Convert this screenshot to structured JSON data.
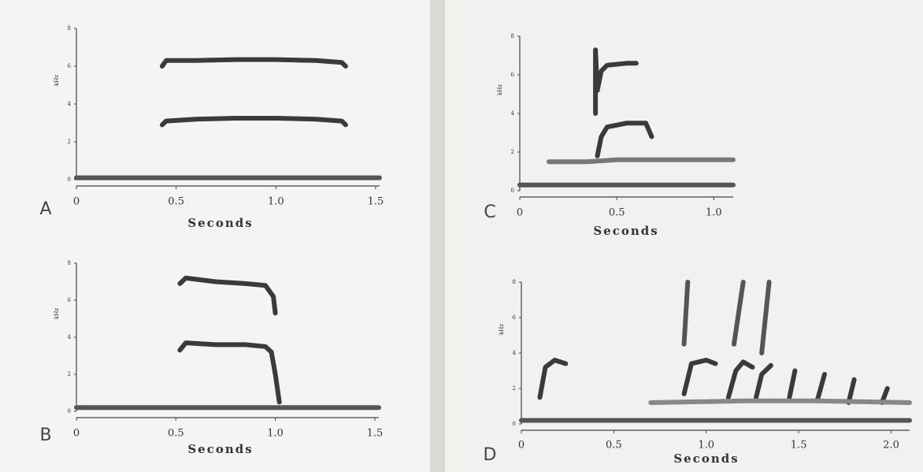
{
  "chart_data": [
    {
      "type": "line",
      "panel": "A",
      "xlabel": "Seconds",
      "ylabel": "kHz",
      "xlim": [
        0,
        1.52
      ],
      "ylim": [
        0,
        8
      ],
      "xticks": [
        0,
        0.5,
        {
          "value": 1,
          "label": "1.0"
        },
        1.5
      ],
      "yticks": [
        0,
        2,
        4,
        6,
        8
      ],
      "series": [
        {
          "color": "#3a3a3a",
          "x": [
            0.43,
            0.45,
            0.6,
            0.8,
            1.0,
            1.2,
            1.33,
            1.35
          ],
          "values": [
            6.0,
            6.3,
            6.3,
            6.35,
            6.35,
            6.3,
            6.2,
            6.0
          ]
        },
        {
          "color": "#3a3a3a",
          "x": [
            0.43,
            0.45,
            0.6,
            0.8,
            1.0,
            1.2,
            1.33,
            1.35
          ],
          "values": [
            2.9,
            3.1,
            3.2,
            3.25,
            3.25,
            3.2,
            3.1,
            2.9
          ]
        },
        {
          "color": "#555555",
          "x": [
            0,
            0.5,
            1.0,
            1.52
          ],
          "values": [
            0.1,
            0.1,
            0.1,
            0.1
          ]
        }
      ]
    },
    {
      "type": "line",
      "panel": "B",
      "xlabel": "Seconds",
      "ylabel": "kHz",
      "xlim": [
        0,
        1.52
      ],
      "ylim": [
        0,
        8
      ],
      "xticks": [
        0,
        0.5,
        {
          "value": 1,
          "label": "1.0"
        },
        1.5
      ],
      "yticks": [
        0,
        2,
        4,
        6,
        8
      ],
      "series": [
        {
          "color": "#3a3a3a",
          "x": [
            0.52,
            0.55,
            0.7,
            0.85,
            0.95,
            0.99,
            1.0
          ],
          "values": [
            6.9,
            7.2,
            7.0,
            6.9,
            6.8,
            6.2,
            5.3
          ]
        },
        {
          "color": "#3a3a3a",
          "x": [
            0.52,
            0.55,
            0.7,
            0.85,
            0.95,
            0.98,
            1.0,
            1.02
          ],
          "values": [
            3.3,
            3.7,
            3.6,
            3.6,
            3.5,
            3.2,
            2.0,
            0.5
          ]
        },
        {
          "color": "#555555",
          "x": [
            0,
            0.5,
            1.0,
            1.52
          ],
          "values": [
            0.2,
            0.2,
            0.2,
            0.2
          ]
        }
      ]
    },
    {
      "type": "line",
      "panel": "C",
      "xlabel": "Seconds",
      "ylabel": "kHz",
      "xlim": [
        0,
        1.1
      ],
      "ylim": [
        0,
        8
      ],
      "xticks": [
        0,
        0.5,
        {
          "value": 1,
          "label": "1.0"
        }
      ],
      "yticks": [
        0,
        2,
        4,
        6,
        8
      ],
      "series": [
        {
          "color": "#3a3a3a",
          "x": [
            0.39,
            0.39,
            0.4,
            0.42,
            0.45,
            0.55,
            0.6
          ],
          "values": [
            4.0,
            7.3,
            5.2,
            6.2,
            6.5,
            6.6,
            6.6
          ]
        },
        {
          "color": "#3a3a3a",
          "x": [
            0.4,
            0.42,
            0.45,
            0.55,
            0.65,
            0.68
          ],
          "values": [
            1.8,
            2.8,
            3.3,
            3.5,
            3.5,
            2.8
          ]
        },
        {
          "color": "#777777",
          "x": [
            0.15,
            0.35,
            0.5,
            0.8,
            1.1
          ],
          "values": [
            1.5,
            1.5,
            1.6,
            1.6,
            1.6
          ]
        },
        {
          "color": "#555555",
          "x": [
            0,
            0.5,
            1.0,
            1.1
          ],
          "values": [
            0.3,
            0.3,
            0.3,
            0.3
          ]
        }
      ]
    },
    {
      "type": "line",
      "panel": "D",
      "xlabel": "Seconds",
      "ylabel": "kHz",
      "xlim": [
        0,
        2.1
      ],
      "ylim": [
        0,
        8
      ],
      "xticks": [
        0,
        0.5,
        {
          "value": 1,
          "label": "1.0"
        },
        1.5,
        {
          "value": 2,
          "label": "2.0"
        }
      ],
      "yticks": [
        0,
        2,
        4,
        6,
        8
      ],
      "series": [
        {
          "color": "#3a3a3a",
          "x": [
            0.1,
            0.13,
            0.18,
            0.24
          ],
          "values": [
            1.5,
            3.2,
            3.6,
            3.4
          ]
        },
        {
          "color": "#3a3a3a",
          "x": [
            0.88,
            0.92,
            1.0,
            1.05
          ],
          "values": [
            1.7,
            3.4,
            3.6,
            3.4
          ]
        },
        {
          "color": "#3a3a3a",
          "x": [
            1.12,
            1.16,
            1.2,
            1.25
          ],
          "values": [
            1.5,
            3.0,
            3.5,
            3.2
          ]
        },
        {
          "color": "#3a3a3a",
          "x": [
            1.27,
            1.3,
            1.35
          ],
          "values": [
            1.5,
            2.8,
            3.3
          ]
        },
        {
          "color": "#3a3a3a",
          "x": [
            1.45,
            1.48
          ],
          "values": [
            1.5,
            3.0
          ]
        },
        {
          "color": "#3a3a3a",
          "x": [
            1.6,
            1.64
          ],
          "values": [
            1.3,
            2.8
          ]
        },
        {
          "color": "#3a3a3a",
          "x": [
            1.77,
            1.8
          ],
          "values": [
            1.2,
            2.5
          ]
        },
        {
          "color": "#3a3a3a",
          "x": [
            1.95,
            1.98
          ],
          "values": [
            1.2,
            2.0
          ]
        },
        {
          "color": "#555555",
          "x": [
            0.88,
            0.9
          ],
          "values": [
            4.5,
            8.0
          ]
        },
        {
          "color": "#555555",
          "x": [
            1.15,
            1.2
          ],
          "values": [
            4.5,
            8.0
          ]
        },
        {
          "color": "#555555",
          "x": [
            1.3,
            1.34
          ],
          "values": [
            4.0,
            8.0
          ]
        },
        {
          "color": "#888888",
          "x": [
            0.7,
            1.2,
            1.6,
            2.1
          ],
          "values": [
            1.2,
            1.3,
            1.3,
            1.2
          ]
        },
        {
          "color": "#555555",
          "x": [
            0,
            0.5,
            1.0,
            1.5,
            2.1
          ],
          "values": [
            0.2,
            0.2,
            0.2,
            0.2,
            0.2
          ]
        }
      ]
    }
  ]
}
